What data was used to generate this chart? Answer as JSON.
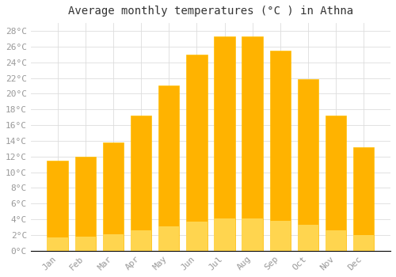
{
  "title": "Average monthly temperatures (°C ) in Athna",
  "months": [
    "Jan",
    "Feb",
    "Mar",
    "Apr",
    "May",
    "Jun",
    "Jul",
    "Aug",
    "Sep",
    "Oct",
    "Nov",
    "Dec"
  ],
  "values": [
    11.5,
    12.0,
    13.8,
    17.2,
    21.0,
    25.0,
    27.3,
    27.3,
    25.5,
    21.8,
    17.2,
    13.2
  ],
  "bar_color_top": "#FFB300",
  "bar_color_bottom": "#FFA000",
  "bar_edge_color": "#FFC107",
  "background_color": "#FFFFFF",
  "grid_color": "#DDDDDD",
  "ylim": [
    0,
    29
  ],
  "yticks": [
    0,
    2,
    4,
    6,
    8,
    10,
    12,
    14,
    16,
    18,
    20,
    22,
    24,
    26,
    28
  ],
  "title_fontsize": 10,
  "tick_fontsize": 8,
  "tick_color": "#999999",
  "font_family": "monospace"
}
